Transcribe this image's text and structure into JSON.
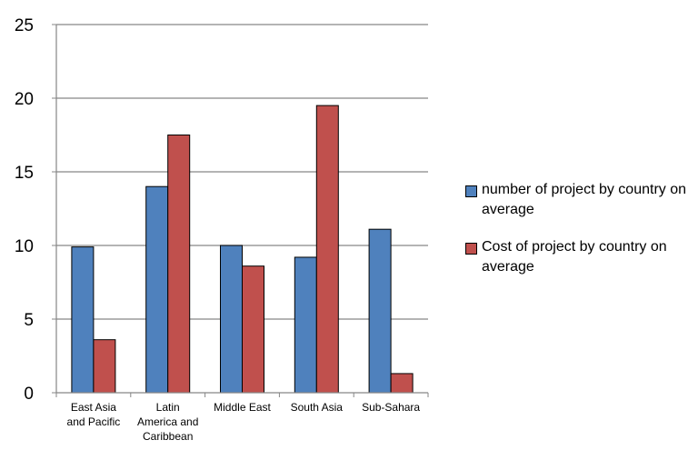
{
  "chart_data": {
    "type": "bar",
    "categories": [
      [
        "East Asia",
        "and Pacific"
      ],
      [
        "Latin",
        "America and",
        "Caribbean"
      ],
      [
        "Middle East"
      ],
      [
        "South Asia"
      ],
      [
        "Sub-Sahara"
      ]
    ],
    "series": [
      {
        "name": "number of project by country on average",
        "color": "#4F81BD",
        "values": [
          9.9,
          14.0,
          10.0,
          9.2,
          11.1
        ]
      },
      {
        "name": "Cost of project by country on average",
        "color": "#C0504D",
        "values": [
          3.6,
          17.5,
          8.6,
          19.5,
          1.3
        ]
      }
    ],
    "ylim": [
      0,
      25
    ],
    "yticks": [
      0,
      5,
      10,
      15,
      20,
      25
    ],
    "grid": true,
    "legend_position": "right"
  }
}
